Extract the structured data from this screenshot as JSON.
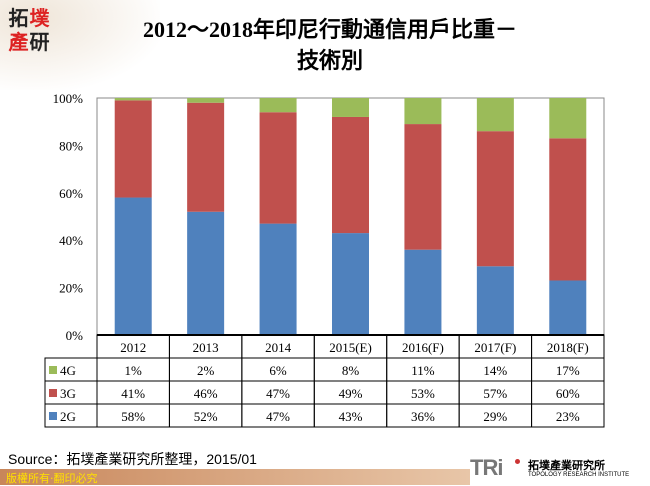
{
  "logo": {
    "chars": [
      "拓",
      "墣",
      "產",
      "研"
    ]
  },
  "title_line1": "2012～2018年印尼行動通信用戶比重－",
  "title_line2": "技術別",
  "source": "Source：拓墣產業研究所整理，2015/01",
  "copyright": "版權所有‧翻印必究",
  "brand": {
    "mark": "TRi",
    "cn": "拓墣產業研究所",
    "en": "TOPOLOGY RESEARCH INSTITUTE"
  },
  "chart_data": {
    "type": "bar",
    "stacked": true,
    "categories": [
      "2012",
      "2013",
      "2014",
      "2015(E)",
      "2016(F)",
      "2017(F)",
      "2018(F)"
    ],
    "series": [
      {
        "name": "2G",
        "values": [
          58,
          52,
          47,
          43,
          36,
          29,
          23
        ],
        "labels": [
          "58%",
          "52%",
          "47%",
          "43%",
          "36%",
          "29%",
          "23%"
        ],
        "color": "#4f81bd"
      },
      {
        "name": "3G",
        "values": [
          41,
          46,
          47,
          49,
          53,
          57,
          60
        ],
        "labels": [
          "41%",
          "46%",
          "47%",
          "49%",
          "53%",
          "57%",
          "60%"
        ],
        "color": "#c0504d"
      },
      {
        "name": "4G",
        "values": [
          1,
          2,
          6,
          8,
          11,
          14,
          17
        ],
        "labels": [
          "1%",
          "2%",
          "6%",
          "8%",
          "11%",
          "14%",
          "17%"
        ],
        "color": "#9bbb59"
      }
    ],
    "yticks": [
      "0%",
      "20%",
      "40%",
      "60%",
      "80%",
      "100%"
    ],
    "ylim": [
      0,
      100
    ],
    "grid": false,
    "legend": "data-table"
  }
}
